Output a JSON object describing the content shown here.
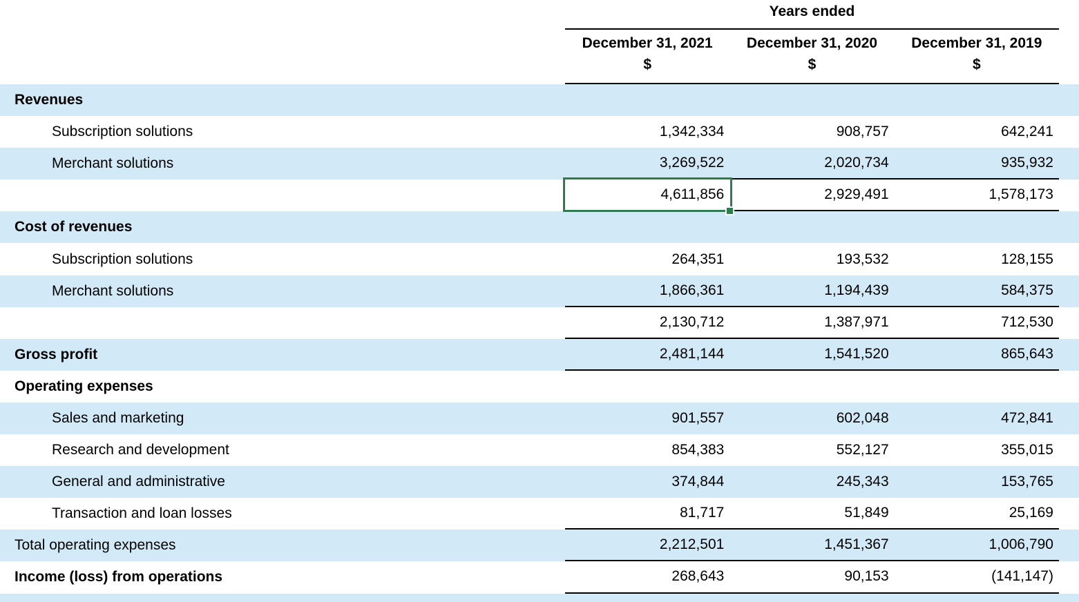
{
  "header": {
    "years_ended": "Years ended",
    "columns": [
      "December 31, 2021",
      "December 31, 2020",
      "December 31, 2019"
    ],
    "currency_symbol": "$"
  },
  "rows": [
    {
      "label": "Revenues",
      "style": "section",
      "bg": "blue",
      "values": [
        "",
        "",
        ""
      ],
      "rule_below": false
    },
    {
      "label": "Subscription solutions",
      "style": "item",
      "bg": "white",
      "values": [
        "1,342,334",
        "908,757",
        "642,241"
      ],
      "rule_below": false
    },
    {
      "label": "Merchant solutions",
      "style": "item",
      "bg": "blue",
      "values": [
        "3,269,522",
        "2,020,734",
        "935,932"
      ],
      "rule_below": true
    },
    {
      "label": "",
      "style": "plain",
      "bg": "white",
      "values": [
        "4,611,856",
        "2,929,491",
        "1,578,173"
      ],
      "rule_below": true
    },
    {
      "label": "Cost of revenues",
      "style": "section",
      "bg": "blue",
      "values": [
        "",
        "",
        ""
      ],
      "rule_below": false
    },
    {
      "label": "Subscription solutions",
      "style": "item",
      "bg": "white",
      "values": [
        "264,351",
        "193,532",
        "128,155"
      ],
      "rule_below": false
    },
    {
      "label": "Merchant solutions",
      "style": "item",
      "bg": "blue",
      "values": [
        "1,866,361",
        "1,194,439",
        "584,375"
      ],
      "rule_below": true
    },
    {
      "label": "",
      "style": "plain",
      "bg": "white",
      "values": [
        "2,130,712",
        "1,387,971",
        "712,530"
      ],
      "rule_below": true
    },
    {
      "label": "Gross profit",
      "style": "section",
      "bg": "blue",
      "values": [
        "2,481,144",
        "1,541,520",
        "865,643"
      ],
      "rule_below": true
    },
    {
      "label": "Operating expenses",
      "style": "section",
      "bg": "white",
      "values": [
        "",
        "",
        ""
      ],
      "rule_below": false
    },
    {
      "label": "Sales and marketing",
      "style": "item",
      "bg": "blue",
      "values": [
        "901,557",
        "602,048",
        "472,841"
      ],
      "rule_below": false
    },
    {
      "label": "Research and development",
      "style": "item",
      "bg": "white",
      "values": [
        "854,383",
        "552,127",
        "355,015"
      ],
      "rule_below": false
    },
    {
      "label": "General and administrative",
      "style": "item",
      "bg": "blue",
      "values": [
        "374,844",
        "245,343",
        "153,765"
      ],
      "rule_below": false
    },
    {
      "label": "Transaction and loan losses",
      "style": "item",
      "bg": "white",
      "values": [
        "81,717",
        "51,849",
        "25,169"
      ],
      "rule_below": true
    },
    {
      "label": "Total operating expenses",
      "style": "plain",
      "bg": "blue",
      "values": [
        "2,212,501",
        "1,451,367",
        "1,006,790"
      ],
      "rule_below": true
    },
    {
      "label": "Income (loss) from operations",
      "style": "section",
      "bg": "white",
      "values": [
        "268,643",
        "90,153",
        "(141,147)"
      ],
      "rule_below": true
    }
  ],
  "selected_cell": {
    "row_index": 3,
    "col_index": 0,
    "column": "December 31, 2021",
    "value": "4,611,856"
  },
  "colors": {
    "stripe_blue": "#d2e9f8",
    "selection_green": "#2e7d4e",
    "rule_black": "#000000"
  }
}
